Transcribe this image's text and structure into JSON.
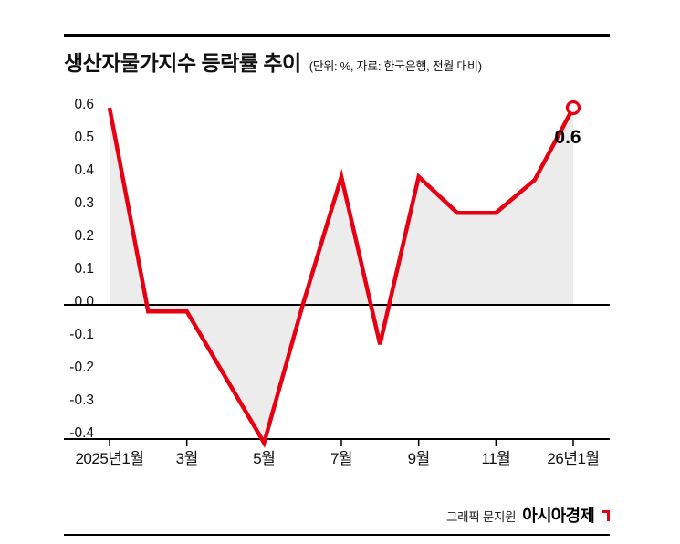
{
  "header": {
    "title": "생산자물가지수 등락률 추이",
    "subtitle": "(단위: %, 자료: 한국은행, 전월 대비)"
  },
  "footer": {
    "credit": "그래픽 문지원",
    "brand": "아시아경제"
  },
  "chart_data": {
    "type": "line",
    "title": "생산자물가지수 등락률 추이",
    "unit_note": "단위: %, 자료: 한국은행, 전월 대비",
    "x_tick_labels": [
      "2025년1월",
      "3월",
      "5월",
      "7월",
      "9월",
      "11월",
      "26년1월"
    ],
    "x_tick_indices": [
      0,
      2,
      4,
      6,
      8,
      10,
      12
    ],
    "values": [
      0.6,
      -0.02,
      -0.02,
      -0.22,
      -0.42,
      0.0,
      0.39,
      -0.12,
      0.39,
      0.28,
      0.28,
      0.38,
      0.6
    ],
    "y_ticks": [
      0.6,
      0.5,
      0.4,
      0.3,
      0.2,
      0.1,
      0.0,
      -0.1,
      -0.2,
      -0.3,
      -0.4
    ],
    "ylim": [
      -0.45,
      0.65
    ],
    "last_value_label": "0.6",
    "line_color": "#e60012",
    "area_color": "#ececec",
    "axis_color": "#000000",
    "grid": false,
    "legend": "none",
    "zero_line": true
  }
}
